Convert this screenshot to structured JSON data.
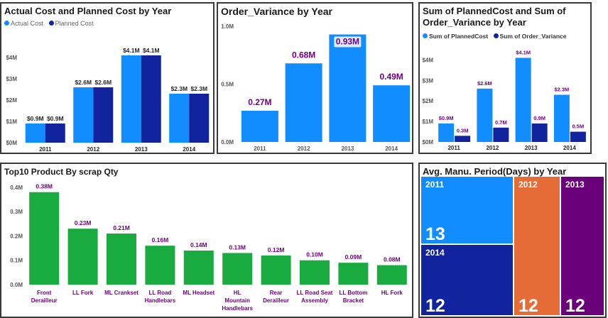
{
  "colors": {
    "actual": "#118DFF",
    "planned": "#12239E",
    "variance": "#118DFF",
    "scrap": "#1AAB40",
    "value_label_purple": "#6B007B",
    "axis_text": "#666666",
    "tm_2011": "#118DFF",
    "tm_2014": "#12239E",
    "tm_2012": "#E66C37",
    "tm_2013": "#6B007B"
  },
  "panels": {
    "cost": {
      "title": "Actual Cost and Planned Cost by Year",
      "legend": [
        {
          "label": "Actual Cost",
          "color": "#118DFF"
        },
        {
          "label": "Planned Cost",
          "color": "#12239E"
        }
      ]
    },
    "variance": {
      "title": "Order_Variance by Year"
    },
    "sum": {
      "title_line1": "Sum of PlannedCost and Sum of",
      "title_line2": "Order_Variance by Year",
      "legend": [
        {
          "label": "Sum of PlannedCost",
          "color": "#118DFF"
        },
        {
          "label": "Sum of Order_Variance",
          "color": "#12239E"
        }
      ]
    },
    "scrap": {
      "title": "Top10 Product By scrap Qty"
    },
    "treemap": {
      "title": "Avg. Manu. Period(Days) by Year"
    }
  },
  "chart_data": [
    {
      "id": "cost",
      "type": "bar",
      "title": "Actual Cost and Planned Cost by Year",
      "categories": [
        "2011",
        "2012",
        "2013",
        "2014"
      ],
      "series": [
        {
          "name": "Actual Cost",
          "values": [
            0.9,
            2.6,
            4.1,
            2.3
          ],
          "labels": [
            "$0.9M",
            "$2.6M",
            "$4.1M",
            "$2.3M"
          ]
        },
        {
          "name": "Planned Cost",
          "values": [
            0.9,
            2.6,
            4.1,
            2.3
          ],
          "labels": [
            "$0.9M",
            "$2.6M",
            "$4.1M",
            "$2.3M"
          ]
        }
      ],
      "ylim": [
        0,
        4.6
      ],
      "yticks": [
        0,
        1,
        2,
        3,
        4
      ],
      "yticklabels": [
        "$0M",
        "$1M",
        "$2M",
        "$3M",
        "$4M"
      ],
      "legend_position": "top-left",
      "grid": false
    },
    {
      "id": "variance",
      "type": "bar",
      "title": "Order_Variance by Year",
      "categories": [
        "2011",
        "2012",
        "2013",
        "2014"
      ],
      "values": [
        0.27,
        0.68,
        0.93,
        0.49
      ],
      "labels": [
        "0.27M",
        "0.68M",
        "0.93M",
        "0.49M"
      ],
      "highlighted": "2013",
      "ylim": [
        0,
        1.05
      ],
      "yticks": [
        0,
        0.5,
        1.0
      ],
      "yticklabels": [
        "0.0M",
        "0.5M",
        "1.0M"
      ],
      "grid": false
    },
    {
      "id": "sum",
      "type": "bar",
      "title": "Sum of PlannedCost and Sum of Order_Variance by Year",
      "categories": [
        "2011",
        "2012",
        "2013",
        "2014"
      ],
      "series": [
        {
          "name": "Sum of PlannedCost",
          "values": [
            0.9,
            2.6,
            4.1,
            2.3
          ],
          "labels": [
            "$0.9M",
            "$2.6M",
            "$4.1M",
            "$2.3M"
          ]
        },
        {
          "name": "Sum of Order_Variance",
          "values": [
            0.3,
            0.7,
            0.9,
            0.5
          ],
          "labels": [
            "0.3M",
            "0.7M",
            "0.9M",
            "0.5M"
          ]
        }
      ],
      "ylim": [
        0,
        4.6
      ],
      "yticks": [
        0,
        1,
        2,
        3,
        4
      ],
      "yticklabels": [
        "$0M",
        "$1M",
        "$2M",
        "$3M",
        "$4M"
      ],
      "legend_position": "top-left",
      "grid": false
    },
    {
      "id": "scrap",
      "type": "bar",
      "title": "Top10 Product By scrap Qty",
      "categories": [
        [
          "Front",
          "Derailleur"
        ],
        [
          "LL Fork"
        ],
        [
          "ML Crankset"
        ],
        [
          "LL Road",
          "Handlebars"
        ],
        [
          "ML Headset"
        ],
        [
          "HL",
          "Mountain",
          "Handlebars"
        ],
        [
          "Rear",
          "Derailleur"
        ],
        [
          "LL Road Seat",
          "Assembly"
        ],
        [
          "LL Bottom",
          "Bracket"
        ],
        [
          "HL Fork"
        ]
      ],
      "values": [
        0.38,
        0.23,
        0.21,
        0.16,
        0.14,
        0.13,
        0.12,
        0.1,
        0.09,
        0.08
      ],
      "labels": [
        "0.38M",
        "0.23M",
        "0.21M",
        "0.16M",
        "0.14M",
        "0.13M",
        "0.12M",
        "0.10M",
        "0.09M",
        "0.08M"
      ],
      "ylim": [
        0,
        0.42
      ],
      "yticks": [
        0,
        0.1,
        0.2,
        0.3,
        0.4
      ],
      "yticklabels": [
        "0.0M",
        "0.1M",
        "0.2M",
        "0.3M",
        "0.4M"
      ],
      "grid": false
    },
    {
      "id": "treemap",
      "type": "treemap",
      "title": "Avg. Manu. Period(Days) by Year",
      "items": [
        {
          "label": "2011",
          "value": 13
        },
        {
          "label": "2014",
          "value": 12
        },
        {
          "label": "2012",
          "value": 12
        },
        {
          "label": "2013",
          "value": 12
        }
      ]
    }
  ]
}
